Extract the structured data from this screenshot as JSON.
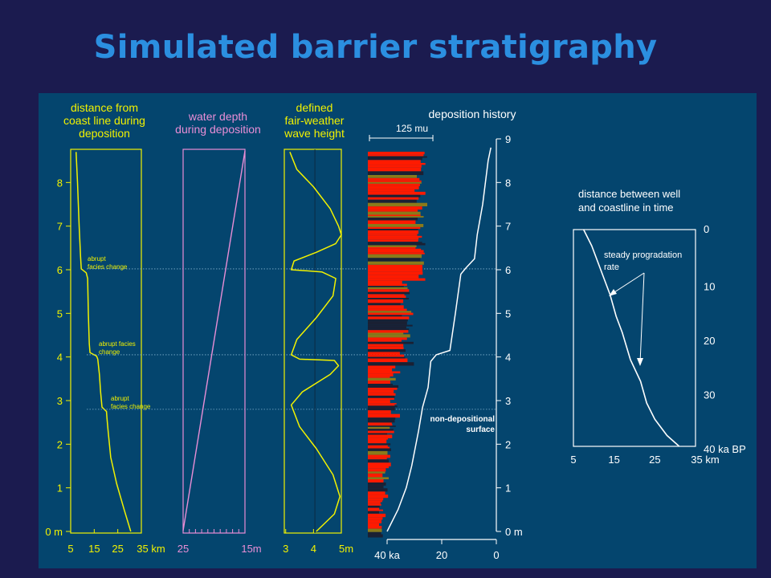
{
  "slide_title": "Simulated barrier stratigraphy",
  "colors": {
    "background": "#1b1b4f",
    "panel": "#04456e",
    "title": "#2b8fe0",
    "yellow": "#f2f200",
    "pink": "#e98ed6",
    "white": "#ffffff",
    "red": "#ff1a00"
  },
  "chart_data": [
    {
      "type": "line",
      "title": "distance from coast line during deposition",
      "title_lines": [
        "distance from",
        "coast line during",
        "deposition"
      ],
      "x_ticks": [
        "5",
        "15",
        "25",
        "35 km"
      ],
      "xlim": [
        5,
        35
      ],
      "y_ticks": [
        "0 m",
        "1",
        "2",
        "3",
        "4",
        "5",
        "6",
        "7",
        "8"
      ],
      "ylim": [
        0,
        8.7
      ],
      "series_points": [
        [
          30.5,
          0
        ],
        [
          27.7,
          0.5
        ],
        [
          24.5,
          1.1
        ],
        [
          22,
          1.7
        ],
        [
          20.9,
          2.3
        ],
        [
          20.4,
          2.6
        ],
        [
          20.2,
          2.75
        ],
        [
          18.3,
          2.85
        ],
        [
          17.7,
          3.2
        ],
        [
          17.2,
          3.6
        ],
        [
          16.5,
          3.95
        ],
        [
          16,
          4.02
        ],
        [
          13.2,
          4.1
        ],
        [
          12.9,
          4.3
        ],
        [
          12.5,
          5
        ],
        [
          12.2,
          5.8
        ],
        [
          11.6,
          5.93
        ],
        [
          9.5,
          6.02
        ],
        [
          9.2,
          6.3
        ],
        [
          8.6,
          7
        ],
        [
          7.9,
          8
        ],
        [
          7.3,
          8.7
        ]
      ],
      "annotations": [
        {
          "lines": [
            "abrupt",
            "facies change"
          ],
          "y": 6.0
        },
        {
          "lines": [
            "abrupt facies",
            "change"
          ],
          "y": 4.05
        },
        {
          "lines": [
            "abrupt",
            "facies change"
          ],
          "y": 2.8
        }
      ]
    },
    {
      "type": "line",
      "title": "water depth during deposition",
      "title_lines": [
        "water depth",
        "during deposition"
      ],
      "x_ticks": [
        "25",
        "15m"
      ],
      "xlim": [
        25,
        15
      ],
      "ylim": [
        0,
        8.7
      ],
      "series_points": [
        [
          25,
          0
        ],
        [
          15,
          8.7
        ]
      ]
    },
    {
      "type": "line",
      "title": "defined fair-weather wave height",
      "title_lines": [
        "defined",
        "fair-weather",
        "wave height"
      ],
      "x_ticks": [
        "3",
        "4",
        "5m"
      ],
      "xlim": [
        2.95,
        5
      ],
      "ylim": [
        0,
        8.7
      ],
      "series_points": [
        [
          4.1,
          0
        ],
        [
          4.75,
          0.4
        ],
        [
          4.95,
          0.8
        ],
        [
          4.7,
          1.3
        ],
        [
          4.1,
          1.9
        ],
        [
          3.5,
          2.4
        ],
        [
          3.2,
          2.9
        ],
        [
          3.6,
          3.2
        ],
        [
          4.1,
          3.4
        ],
        [
          4.6,
          3.6
        ],
        [
          4.9,
          3.8
        ],
        [
          4.75,
          3.92
        ],
        [
          3.5,
          3.95
        ],
        [
          3.2,
          4.05
        ],
        [
          3.4,
          4.4
        ],
        [
          4.1,
          4.9
        ],
        [
          4.7,
          5.4
        ],
        [
          4.8,
          5.8
        ],
        [
          4.3,
          5.95
        ],
        [
          3.2,
          6.0
        ],
        [
          3.3,
          6.2
        ],
        [
          4.1,
          6.4
        ],
        [
          4.8,
          6.6
        ],
        [
          5.0,
          6.8
        ],
        [
          4.9,
          7
        ],
        [
          4.6,
          7.4
        ],
        [
          4.0,
          7.9
        ],
        [
          3.4,
          8.3
        ],
        [
          3.15,
          8.7
        ]
      ]
    },
    {
      "type": "line",
      "title": "deposition history",
      "title_lines": [
        "deposition history"
      ],
      "scale_bar_label": "125 mu",
      "x_ticks": [
        "40 ka",
        "20",
        "0"
      ],
      "xlim": [
        40,
        0
      ],
      "y_ticks": [
        "0 m",
        "1",
        "2",
        "3",
        "4",
        "5",
        "6",
        "7",
        "8",
        "9"
      ],
      "ylim": [
        0,
        9
      ],
      "series_points": [
        [
          40,
          0
        ],
        [
          36,
          0.5
        ],
        [
          33,
          1
        ],
        [
          31,
          1.5
        ],
        [
          28.5,
          2.3
        ],
        [
          27,
          2.85
        ],
        [
          25,
          3.3
        ],
        [
          24,
          3.9
        ],
        [
          22,
          4.05
        ],
        [
          17,
          4.15
        ],
        [
          15,
          5
        ],
        [
          13,
          5.9
        ],
        [
          11,
          6.05
        ],
        [
          8,
          6.25
        ],
        [
          7,
          6.8
        ],
        [
          5,
          7.5
        ],
        [
          3,
          8.5
        ],
        [
          2,
          8.8
        ]
      ],
      "annotation": [
        "non-depositional",
        "surface"
      ],
      "annotation_y": 2.85
    },
    {
      "type": "line",
      "title": "distance between well and coastline in time",
      "title_lines": [
        "distance between well",
        "and coastline in time"
      ],
      "x_ticks": [
        "5",
        "15",
        "25",
        "35 km"
      ],
      "xlim": [
        5,
        35
      ],
      "y_ticks": [
        "0",
        "10",
        "20",
        "30",
        "40 ka BP"
      ],
      "ylim": [
        0,
        40
      ],
      "series_points": [
        [
          7.5,
          0
        ],
        [
          9.5,
          3
        ],
        [
          12,
          8
        ],
        [
          14,
          12
        ],
        [
          15.5,
          16
        ],
        [
          17,
          19
        ],
        [
          19,
          24
        ],
        [
          21.5,
          28
        ],
        [
          23,
          32
        ],
        [
          25,
          35
        ],
        [
          28,
          38
        ],
        [
          31,
          40
        ]
      ],
      "annotation": [
        "steady progradation",
        "rate"
      ]
    }
  ]
}
